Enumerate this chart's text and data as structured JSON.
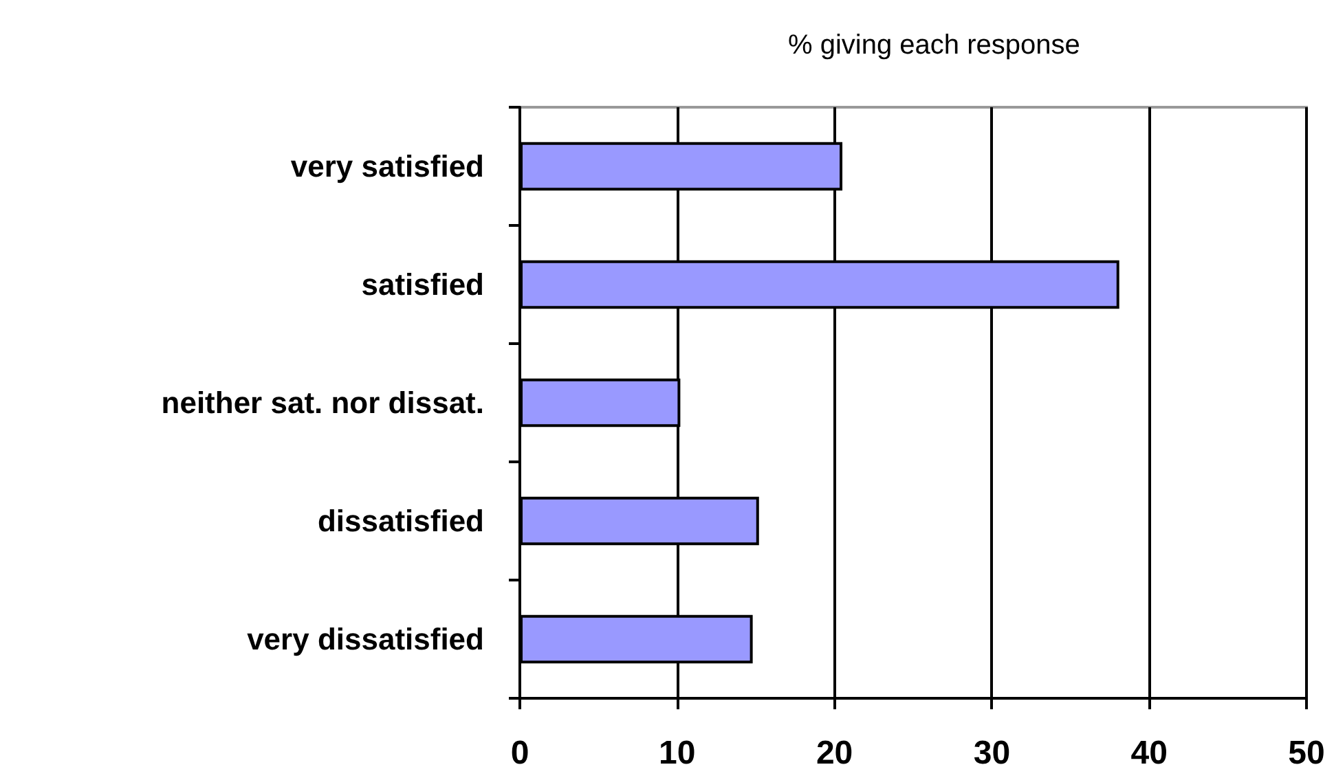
{
  "chart_data": {
    "type": "bar",
    "orientation": "horizontal",
    "title": "% giving each response",
    "categories": [
      "very satisfied",
      "satisfied",
      "neither sat. nor dissat.",
      "dissatisfied",
      "very dissatisfied"
    ],
    "values": [
      20.5,
      38.1,
      10.2,
      15.2,
      14.8
    ],
    "color": "#9999ff",
    "xlim": [
      0,
      50
    ],
    "xticks": [
      0,
      10,
      20,
      30,
      40,
      50
    ],
    "grid": "x"
  }
}
